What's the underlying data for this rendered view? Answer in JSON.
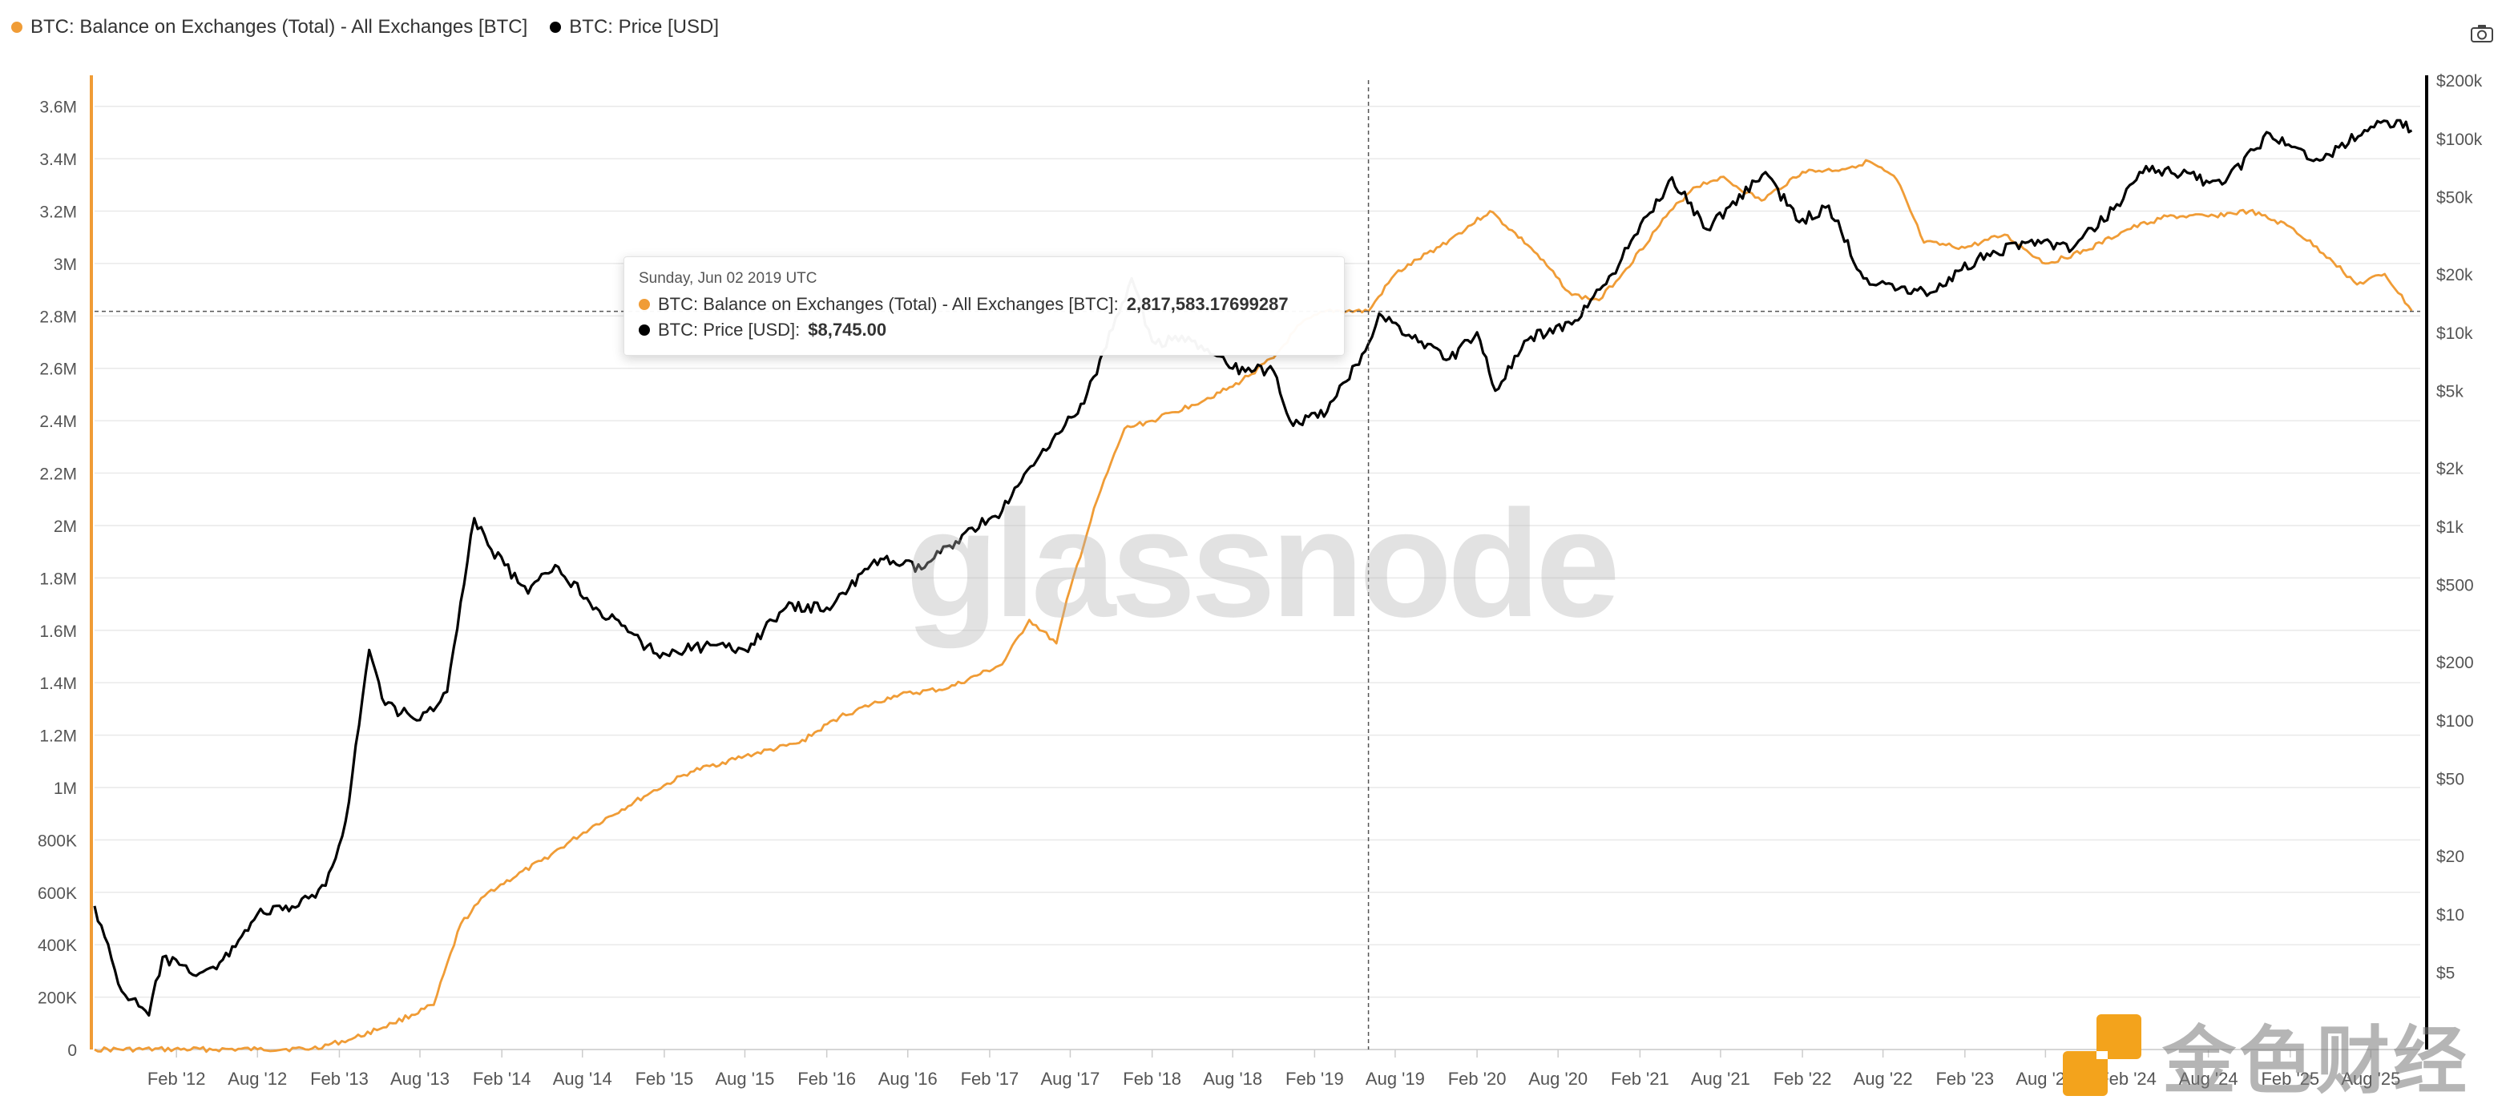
{
  "legend": {
    "series_balance": "BTC: Balance on Exchanges (Total) - All Exchanges [BTC]",
    "series_price": "BTC: Price [USD]"
  },
  "colors": {
    "balance": "#f09c36",
    "price": "#000000",
    "grid": "#e9e9e9",
    "crosshair": "#555555"
  },
  "tooltip": {
    "date": "Sunday, Jun 02 2019 UTC",
    "balance_label": "BTC: Balance on Exchanges (Total) - All Exchanges [BTC]:",
    "balance_value": "2,817,583.17699287",
    "price_label": "BTC: Price [USD]:",
    "price_value": "$8,745.00"
  },
  "watermark": "glassnode",
  "brand": {
    "text": "金色财经",
    "logo_icon": "jinse-logo-icon"
  },
  "camera_icon": "camera-icon",
  "chart_data": {
    "type": "line",
    "title": "",
    "x_axis": {
      "type": "date",
      "range": [
        "2011-08-01",
        "2025-11-20"
      ],
      "ticks": [
        {
          "date": "2012-02-01",
          "label": "Feb '12"
        },
        {
          "date": "2012-08-01",
          "label": "Aug '12"
        },
        {
          "date": "2013-02-01",
          "label": "Feb '13"
        },
        {
          "date": "2013-08-01",
          "label": "Aug '13"
        },
        {
          "date": "2014-02-01",
          "label": "Feb '14"
        },
        {
          "date": "2014-08-01",
          "label": "Aug '14"
        },
        {
          "date": "2015-02-01",
          "label": "Feb '15"
        },
        {
          "date": "2015-08-01",
          "label": "Aug '15"
        },
        {
          "date": "2016-02-01",
          "label": "Feb '16"
        },
        {
          "date": "2016-08-01",
          "label": "Aug '16"
        },
        {
          "date": "2017-02-01",
          "label": "Feb '17"
        },
        {
          "date": "2017-08-01",
          "label": "Aug '17"
        },
        {
          "date": "2018-02-01",
          "label": "Feb '18"
        },
        {
          "date": "2018-08-01",
          "label": "Aug '18"
        },
        {
          "date": "2019-02-01",
          "label": "Feb '19"
        },
        {
          "date": "2019-08-01",
          "label": "Aug '19"
        },
        {
          "date": "2020-02-01",
          "label": "Feb '20"
        },
        {
          "date": "2020-08-01",
          "label": "Aug '20"
        },
        {
          "date": "2021-02-01",
          "label": "Feb '21"
        },
        {
          "date": "2021-08-01",
          "label": "Aug '21"
        },
        {
          "date": "2022-02-01",
          "label": "Feb '22"
        },
        {
          "date": "2022-08-01",
          "label": "Aug '22"
        },
        {
          "date": "2023-02-01",
          "label": "Feb '23"
        },
        {
          "date": "2023-08-01",
          "label": "Aug '23"
        },
        {
          "date": "2024-02-01",
          "label": "Feb '24"
        },
        {
          "date": "2024-08-01",
          "label": "Aug '24"
        },
        {
          "date": "2025-02-01",
          "label": "Feb '25"
        },
        {
          "date": "2025-08-01",
          "label": "Aug '25"
        }
      ]
    },
    "y_left": {
      "scale": "linear",
      "range": [
        0,
        3700000
      ],
      "ticks": [
        {
          "value": 0,
          "label": "0"
        },
        {
          "value": 200000,
          "label": "200K"
        },
        {
          "value": 400000,
          "label": "400K"
        },
        {
          "value": 600000,
          "label": "600K"
        },
        {
          "value": 800000,
          "label": "800K"
        },
        {
          "value": 1000000,
          "label": "1M"
        },
        {
          "value": 1200000,
          "label": "1.2M"
        },
        {
          "value": 1400000,
          "label": "1.4M"
        },
        {
          "value": 1600000,
          "label": "1.6M"
        },
        {
          "value": 1800000,
          "label": "1.8M"
        },
        {
          "value": 2000000,
          "label": "2M"
        },
        {
          "value": 2200000,
          "label": "2.2M"
        },
        {
          "value": 2400000,
          "label": "2.4M"
        },
        {
          "value": 2600000,
          "label": "2.6M"
        },
        {
          "value": 2800000,
          "label": "2.8M"
        },
        {
          "value": 3000000,
          "label": "3M"
        },
        {
          "value": 3200000,
          "label": "3.2M"
        },
        {
          "value": 3400000,
          "label": "3.4M"
        },
        {
          "value": 3600000,
          "label": "3.6M"
        }
      ]
    },
    "y_right": {
      "scale": "log",
      "range": [
        2,
        200000
      ],
      "ticks": [
        {
          "value": 5,
          "label": "$5"
        },
        {
          "value": 10,
          "label": "$10"
        },
        {
          "value": 20,
          "label": "$20"
        },
        {
          "value": 50,
          "label": "$50"
        },
        {
          "value": 100,
          "label": "$100"
        },
        {
          "value": 200,
          "label": "$200"
        },
        {
          "value": 500,
          "label": "$500"
        },
        {
          "value": 1000,
          "label": "$1k"
        },
        {
          "value": 2000,
          "label": "$2k"
        },
        {
          "value": 5000,
          "label": "$5k"
        },
        {
          "value": 10000,
          "label": "$10k"
        },
        {
          "value": 20000,
          "label": "$20k"
        },
        {
          "value": 50000,
          "label": "$50k"
        },
        {
          "value": 100000,
          "label": "$100k"
        },
        {
          "value": 200000,
          "label": "$200k"
        }
      ]
    },
    "grid": true,
    "legend_position": "top-left",
    "crosshair": {
      "date": "2019-06-02",
      "balance": 2817583.17699287
    },
    "series": [
      {
        "name": "BTC: Balance on Exchanges (Total) - All Exchanges [BTC]",
        "axis": "left",
        "points": [
          [
            "2011-08-01",
            0
          ],
          [
            "2012-08-01",
            1000
          ],
          [
            "2012-12-01",
            3000
          ],
          [
            "2013-03-01",
            40000
          ],
          [
            "2013-06-01",
            100000
          ],
          [
            "2013-09-01",
            170000
          ],
          [
            "2013-11-01",
            480000
          ],
          [
            "2014-01-01",
            600000
          ],
          [
            "2014-05-01",
            720000
          ],
          [
            "2014-09-01",
            860000
          ],
          [
            "2015-01-01",
            980000
          ],
          [
            "2015-04-01",
            1060000
          ],
          [
            "2015-08-01",
            1120000
          ],
          [
            "2015-12-01",
            1170000
          ],
          [
            "2016-03-01",
            1270000
          ],
          [
            "2016-07-01",
            1350000
          ],
          [
            "2016-11-01",
            1380000
          ],
          [
            "2017-03-01",
            1470000
          ],
          [
            "2017-05-01",
            1640000
          ],
          [
            "2017-07-01",
            1550000
          ],
          [
            "2017-08-01",
            1760000
          ],
          [
            "2017-10-01",
            2100000
          ],
          [
            "2017-12-01",
            2370000
          ],
          [
            "2018-02-01",
            2400000
          ],
          [
            "2018-05-01",
            2460000
          ],
          [
            "2018-08-01",
            2530000
          ],
          [
            "2018-11-01",
            2640000
          ],
          [
            "2019-01-01",
            2770000
          ],
          [
            "2019-03-01",
            2820000
          ],
          [
            "2019-06-02",
            2817583
          ],
          [
            "2019-08-01",
            2960000
          ],
          [
            "2019-12-01",
            3090000
          ],
          [
            "2020-03-01",
            3200000
          ],
          [
            "2020-06-01",
            3060000
          ],
          [
            "2020-09-01",
            2880000
          ],
          [
            "2020-11-01",
            2860000
          ],
          [
            "2021-01-01",
            2980000
          ],
          [
            "2021-04-01",
            3180000
          ],
          [
            "2021-06-01",
            3290000
          ],
          [
            "2021-08-01",
            3330000
          ],
          [
            "2021-11-01",
            3240000
          ],
          [
            "2022-02-01",
            3350000
          ],
          [
            "2022-05-01",
            3360000
          ],
          [
            "2022-07-01",
            3390000
          ],
          [
            "2022-09-01",
            3320000
          ],
          [
            "2022-11-01",
            3080000
          ],
          [
            "2023-02-01",
            3060000
          ],
          [
            "2023-05-01",
            3110000
          ],
          [
            "2023-08-01",
            3000000
          ],
          [
            "2023-11-01",
            3050000
          ],
          [
            "2024-02-01",
            3130000
          ],
          [
            "2024-05-01",
            3180000
          ],
          [
            "2024-08-01",
            3180000
          ],
          [
            "2024-11-01",
            3200000
          ],
          [
            "2025-02-01",
            3140000
          ],
          [
            "2025-05-01",
            3020000
          ],
          [
            "2025-07-01",
            2920000
          ],
          [
            "2025-09-01",
            2960000
          ],
          [
            "2025-11-01",
            2820000
          ]
        ]
      },
      {
        "name": "BTC: Price [USD]",
        "axis": "right",
        "points": [
          [
            "2011-08-01",
            11
          ],
          [
            "2011-10-01",
            4
          ],
          [
            "2011-12-01",
            3
          ],
          [
            "2012-01-01",
            6
          ],
          [
            "2012-03-01",
            5
          ],
          [
            "2012-05-01",
            5.2
          ],
          [
            "2012-08-01",
            10
          ],
          [
            "2012-11-01",
            11
          ],
          [
            "2013-01-01",
            14
          ],
          [
            "2013-02-15",
            30
          ],
          [
            "2013-04-09",
            230
          ],
          [
            "2013-05-15",
            120
          ],
          [
            "2013-08-01",
            100
          ],
          [
            "2013-10-01",
            140
          ],
          [
            "2013-12-01",
            1100
          ],
          [
            "2014-01-01",
            800
          ],
          [
            "2014-04-01",
            450
          ],
          [
            "2014-06-01",
            630
          ],
          [
            "2014-09-01",
            380
          ],
          [
            "2015-01-15",
            220
          ],
          [
            "2015-05-01",
            240
          ],
          [
            "2015-08-01",
            230
          ],
          [
            "2015-11-01",
            380
          ],
          [
            "2016-02-01",
            380
          ],
          [
            "2016-06-01",
            680
          ],
          [
            "2016-09-01",
            600
          ],
          [
            "2016-12-01",
            900
          ],
          [
            "2017-03-01",
            1200
          ],
          [
            "2017-06-01",
            2500
          ],
          [
            "2017-09-01",
            4300
          ],
          [
            "2017-12-17",
            19000
          ],
          [
            "2018-02-01",
            9000
          ],
          [
            "2018-05-01",
            9000
          ],
          [
            "2018-08-01",
            6500
          ],
          [
            "2018-11-01",
            6300
          ],
          [
            "2018-12-15",
            3300
          ],
          [
            "2019-03-01",
            3900
          ],
          [
            "2019-06-02",
            8745
          ],
          [
            "2019-06-26",
            12500
          ],
          [
            "2019-09-01",
            9700
          ],
          [
            "2019-12-01",
            7300
          ],
          [
            "2020-02-01",
            10000
          ],
          [
            "2020-03-13",
            5000
          ],
          [
            "2020-06-01",
            9500
          ],
          [
            "2020-09-01",
            11000
          ],
          [
            "2020-12-01",
            20000
          ],
          [
            "2021-04-14",
            63000
          ],
          [
            "2021-07-01",
            34000
          ],
          [
            "2021-11-10",
            67000
          ],
          [
            "2022-01-25",
            37000
          ],
          [
            "2022-04-01",
            45000
          ],
          [
            "2022-06-18",
            19000
          ],
          [
            "2022-11-15",
            16000
          ],
          [
            "2023-03-01",
            24000
          ],
          [
            "2023-07-01",
            30000
          ],
          [
            "2023-10-01",
            27000
          ],
          [
            "2024-01-01",
            43000
          ],
          [
            "2024-03-14",
            72000
          ],
          [
            "2024-09-01",
            58000
          ],
          [
            "2024-12-17",
            106000
          ],
          [
            "2025-04-08",
            77000
          ],
          [
            "2025-08-01",
            115000
          ],
          [
            "2025-10-06",
            124000
          ],
          [
            "2025-11-01",
            110000
          ]
        ]
      }
    ]
  }
}
